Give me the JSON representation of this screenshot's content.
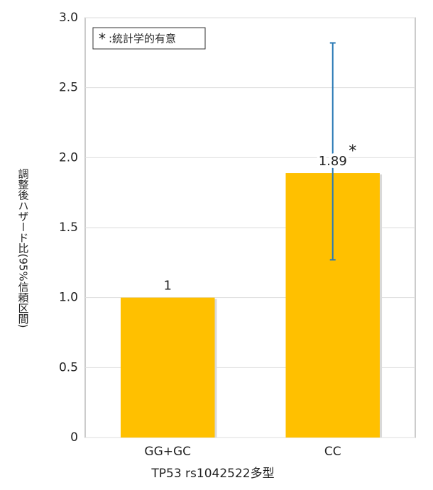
{
  "chart_data": {
    "type": "bar",
    "x_label": "TP53 rs1042522多型",
    "y_label": "調整後ハザード比(95%信頼区間)",
    "categories": [
      "GG+GC",
      "CC"
    ],
    "values": [
      1,
      1.89
    ],
    "ci_low": [
      null,
      1.27
    ],
    "ci_high": [
      null,
      2.82
    ],
    "color": "#ffc000",
    "error_color": "#2a7ab5",
    "ylim": [
      0,
      3
    ],
    "yticks": [
      0,
      {
        "value": 0.5,
        "label": "0.5"
      },
      {
        "value": 1,
        "label": "1.0"
      },
      {
        "value": 1.5,
        "label": "1.5"
      },
      {
        "value": 2,
        "label": "2.0"
      },
      {
        "value": 2.5,
        "label": "2.5"
      },
      {
        "value": 3,
        "label": "3.0"
      }
    ],
    "grid": true,
    "significance_marker": "*",
    "significant": [
      false,
      true
    ],
    "legend": {
      "marker": "*",
      "text": ":統計学的有意",
      "position": "upper left"
    }
  }
}
